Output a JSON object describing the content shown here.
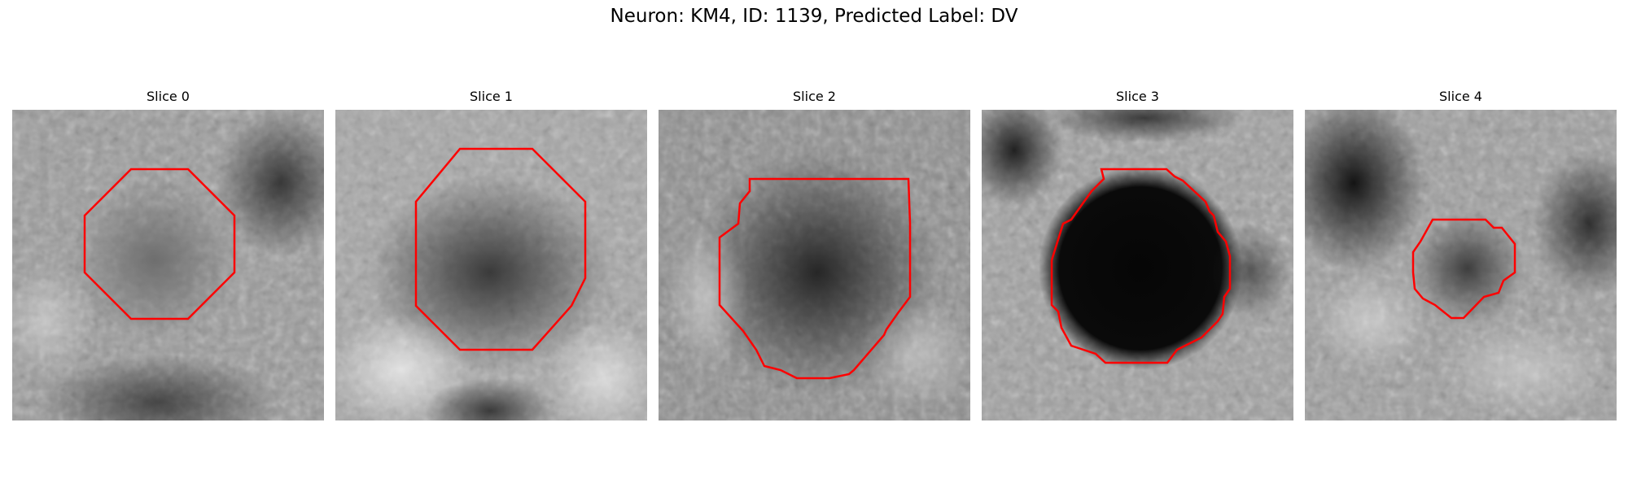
{
  "figure": {
    "title": "Neuron: KM4, ID: 1139, Predicted Label: DV"
  },
  "colors": {
    "contour": "#ff0000",
    "background": "#ffffff"
  },
  "panels": [
    {
      "title": "Slice 0"
    },
    {
      "title": "Slice 1"
    },
    {
      "title": "Slice 2"
    },
    {
      "title": "Slice 3"
    },
    {
      "title": "Slice 4"
    }
  ]
}
